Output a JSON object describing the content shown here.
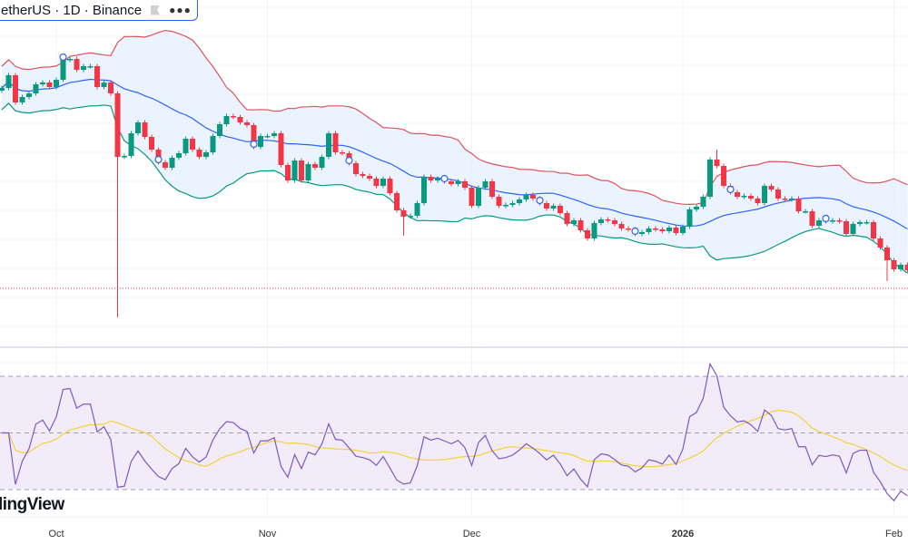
{
  "header": {
    "symbol_text": "etherUS · 1D · Binance",
    "flag_icon": "flag-icon",
    "more_icon": "more-dots-icon"
  },
  "watermark": "lingView",
  "time_axis": [
    {
      "label": "Oct",
      "day_offset": 0,
      "bold": false
    },
    {
      "label": "Nov",
      "day_offset": 31,
      "bold": false
    },
    {
      "label": "Dec",
      "day_offset": 61,
      "bold": false
    },
    {
      "label": "2026",
      "day_offset": 92,
      "bold": true
    },
    {
      "label": "Feb",
      "day_offset": 123,
      "bold": false
    }
  ],
  "colors": {
    "up": "#089981",
    "down": "#f23645",
    "bb_upper": "#e0525c",
    "bb_basis": "#2962ff",
    "bb_lower": "#089981",
    "bb_fill": "#e3f0fd",
    "rsi": "#7e57c2",
    "rsi_ma": "#f5d13b",
    "rsi_fill": "#ede7f6",
    "price_line": "#f23645"
  },
  "chart_data": {
    "type": "candlestick",
    "interval": "1D",
    "first_day_offset_from_oct1": -8,
    "first_open": 300,
    "closes": [
      303,
      317,
      287,
      293,
      297,
      307,
      309,
      304,
      312,
      334,
      335,
      323,
      327,
      327,
      304,
      309,
      297,
      227,
      228,
      253,
      265,
      249,
      235,
      221,
      215,
      226,
      231,
      247,
      235,
      227,
      232,
      250,
      263,
      272,
      271,
      265,
      262,
      238,
      250,
      250,
      253,
      218,
      201,
      223,
      201,
      219,
      215,
      227,
      253,
      232,
      231,
      220,
      208,
      206,
      203,
      195,
      203,
      187,
      168,
      161,
      162,
      176,
      205,
      201,
      203,
      200,
      197,
      200,
      193,
      173,
      193,
      200,
      183,
      173,
      174,
      176,
      180,
      185,
      181,
      176,
      170,
      173,
      165,
      153,
      157,
      146,
      137,
      154,
      158,
      157,
      153,
      148,
      147,
      142,
      144,
      148,
      147,
      145,
      149,
      143,
      150,
      169,
      172,
      183,
      224,
      217,
      195,
      188,
      183,
      184,
      181,
      176,
      195,
      191,
      181,
      180,
      181,
      167,
      167,
      151,
      157,
      156,
      157,
      156,
      142,
      153,
      155,
      155,
      137,
      127,
      113,
      103,
      108,
      102
    ],
    "wick_extremes": [
      {
        "index": 17,
        "low": 50
      },
      {
        "index": 59,
        "low": 140
      },
      {
        "index": 105,
        "high": 235
      },
      {
        "index": 130,
        "low": 90
      }
    ],
    "markers_every_n": 14,
    "marker_first_index": 9,
    "price_line": 82,
    "indicators": {
      "bollinger": {
        "length": 20,
        "mult": 2
      },
      "rsi": {
        "length": 14,
        "ma_length": 14,
        "levels": [
          70,
          50,
          30
        ]
      }
    },
    "grid": true
  }
}
